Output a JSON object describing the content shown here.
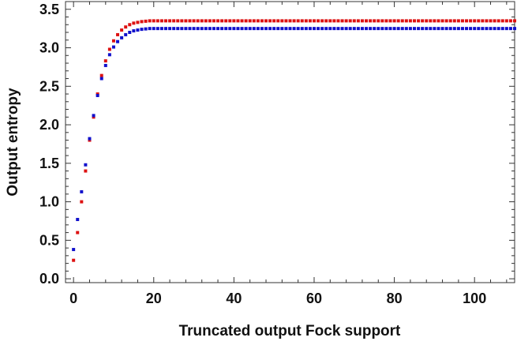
{
  "chart_data": {
    "type": "scatter",
    "title": "",
    "xlabel": "Truncated output Fock support",
    "ylabel": "Output entropy",
    "xlim": [
      -2,
      110
    ],
    "ylim": [
      -0.05,
      3.6
    ],
    "xticks": [
      0,
      20,
      40,
      60,
      80,
      100
    ],
    "xtick_labels": [
      "0",
      "20",
      "40",
      "60",
      "80",
      "100"
    ],
    "yticks": [
      0,
      0.5,
      1,
      1.5,
      2,
      2.5,
      3,
      3.5
    ],
    "ytick_labels": [
      "0.0",
      "0.5",
      "1.0",
      "1.5",
      "2.0",
      "2.5",
      "3.0",
      "3.5"
    ],
    "grid": false,
    "legend": "none",
    "series": [
      {
        "color": "#dd1111",
        "x": [
          0,
          1,
          2,
          3,
          4,
          5,
          6,
          7,
          8,
          9,
          10,
          11,
          12,
          13,
          14,
          15,
          16,
          17,
          18,
          19,
          20,
          21,
          22,
          23,
          24,
          25,
          26,
          27,
          28,
          29,
          30,
          31,
          32,
          33,
          34,
          35,
          36,
          37,
          38,
          39,
          40,
          41,
          42,
          43,
          44,
          45,
          46,
          47,
          48,
          49,
          50,
          51,
          52,
          53,
          54,
          55,
          56,
          57,
          58,
          59,
          60,
          61,
          62,
          63,
          64,
          65,
          66,
          67,
          68,
          69,
          70,
          71,
          72,
          73,
          74,
          75,
          76,
          77,
          78,
          79,
          80,
          81,
          82,
          83,
          84,
          85,
          86,
          87,
          88,
          89,
          90,
          91,
          92,
          93,
          94,
          95,
          96,
          97,
          98,
          99,
          100,
          101,
          102,
          103,
          104,
          105,
          106,
          107,
          108,
          109,
          110
        ],
        "y": [
          0.24,
          0.6,
          1.0,
          1.4,
          1.8,
          2.1,
          2.4,
          2.64,
          2.83,
          2.98,
          3.09,
          3.17,
          3.23,
          3.27,
          3.3,
          3.32,
          3.33,
          3.34,
          3.345,
          3.35,
          3.35,
          3.35,
          3.35,
          3.35,
          3.35,
          3.35,
          3.35,
          3.35,
          3.35,
          3.35,
          3.35,
          3.35,
          3.35,
          3.35,
          3.35,
          3.35,
          3.35,
          3.35,
          3.35,
          3.35,
          3.35,
          3.35,
          3.35,
          3.35,
          3.35,
          3.35,
          3.35,
          3.35,
          3.35,
          3.35,
          3.35,
          3.35,
          3.35,
          3.35,
          3.35,
          3.35,
          3.35,
          3.35,
          3.35,
          3.35,
          3.35,
          3.35,
          3.35,
          3.35,
          3.35,
          3.35,
          3.35,
          3.35,
          3.35,
          3.35,
          3.35,
          3.35,
          3.35,
          3.35,
          3.35,
          3.35,
          3.35,
          3.35,
          3.35,
          3.35,
          3.35,
          3.35,
          3.35,
          3.35,
          3.35,
          3.35,
          3.35,
          3.35,
          3.35,
          3.35,
          3.35,
          3.35,
          3.35,
          3.35,
          3.35,
          3.35,
          3.35,
          3.35,
          3.35,
          3.35,
          3.35,
          3.35,
          3.35,
          3.35,
          3.35,
          3.35,
          3.35,
          3.35,
          3.35,
          3.35,
          3.35
        ]
      },
      {
        "color": "#1111cc",
        "x": [
          0,
          1,
          2,
          3,
          4,
          5,
          6,
          7,
          8,
          9,
          10,
          11,
          12,
          13,
          14,
          15,
          16,
          17,
          18,
          19,
          20,
          21,
          22,
          23,
          24,
          25,
          26,
          27,
          28,
          29,
          30,
          31,
          32,
          33,
          34,
          35,
          36,
          37,
          38,
          39,
          40,
          41,
          42,
          43,
          44,
          45,
          46,
          47,
          48,
          49,
          50,
          51,
          52,
          53,
          54,
          55,
          56,
          57,
          58,
          59,
          60,
          61,
          62,
          63,
          64,
          65,
          66,
          67,
          68,
          69,
          70,
          71,
          72,
          73,
          74,
          75,
          76,
          77,
          78,
          79,
          80,
          81,
          82,
          83,
          84,
          85,
          86,
          87,
          88,
          89,
          90,
          91,
          92,
          93,
          94,
          95,
          96,
          97,
          98,
          99,
          100,
          101,
          102,
          103,
          104,
          105,
          106,
          107,
          108,
          109,
          110
        ],
        "y": [
          0.38,
          0.77,
          1.13,
          1.48,
          1.82,
          2.12,
          2.38,
          2.6,
          2.77,
          2.91,
          3.01,
          3.08,
          3.13,
          3.17,
          3.2,
          3.22,
          3.23,
          3.24,
          3.245,
          3.25,
          3.25,
          3.25,
          3.25,
          3.25,
          3.25,
          3.25,
          3.25,
          3.25,
          3.25,
          3.25,
          3.25,
          3.25,
          3.25,
          3.25,
          3.25,
          3.25,
          3.25,
          3.25,
          3.25,
          3.25,
          3.25,
          3.25,
          3.25,
          3.25,
          3.25,
          3.25,
          3.25,
          3.25,
          3.25,
          3.25,
          3.25,
          3.25,
          3.25,
          3.25,
          3.25,
          3.25,
          3.25,
          3.25,
          3.25,
          3.25,
          3.25,
          3.25,
          3.25,
          3.25,
          3.25,
          3.25,
          3.25,
          3.25,
          3.25,
          3.25,
          3.25,
          3.25,
          3.25,
          3.25,
          3.25,
          3.25,
          3.25,
          3.25,
          3.25,
          3.25,
          3.25,
          3.25,
          3.25,
          3.25,
          3.25,
          3.25,
          3.25,
          3.25,
          3.25,
          3.25,
          3.25,
          3.25,
          3.25,
          3.25,
          3.25,
          3.25,
          3.25,
          3.25,
          3.25,
          3.25,
          3.25,
          3.25,
          3.25,
          3.25,
          3.25,
          3.25,
          3.25,
          3.25,
          3.25,
          3.25,
          3.25
        ]
      }
    ]
  }
}
